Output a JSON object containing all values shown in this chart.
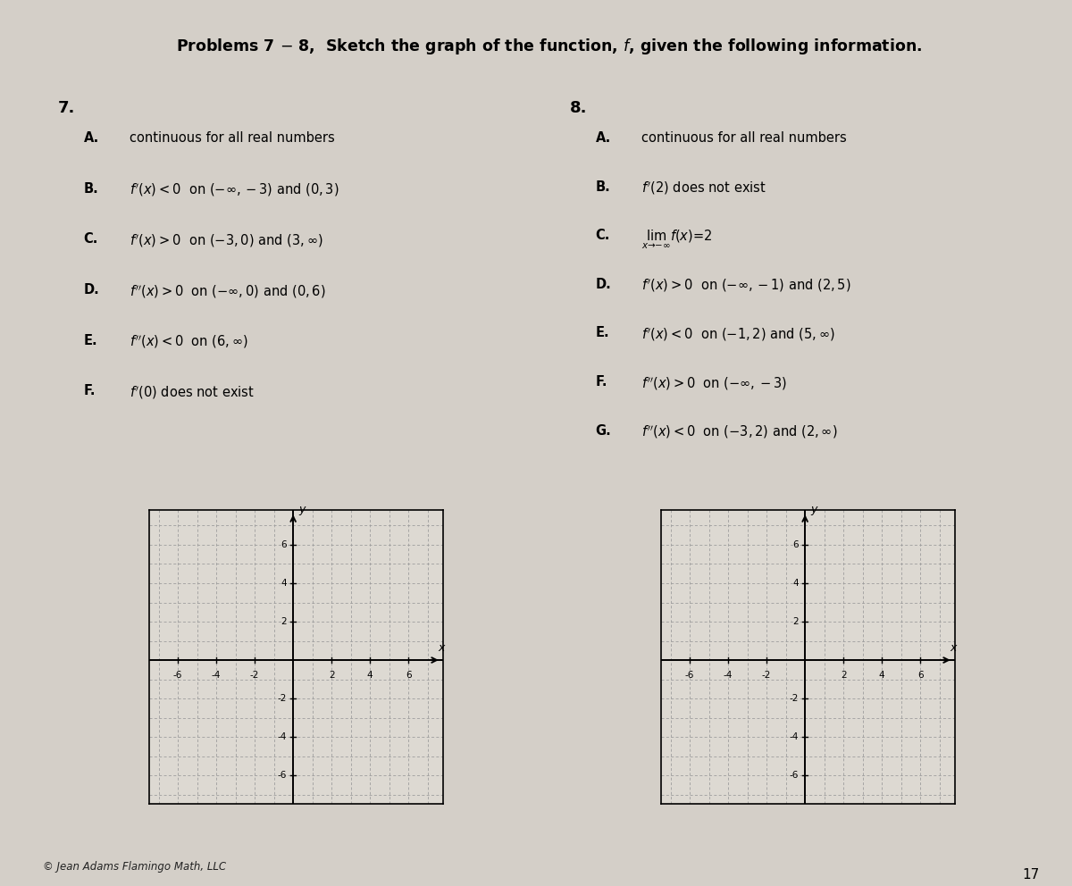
{
  "title": "Problems 7 – 8,  Sketch the graph of the function, $f$, given the following information.",
  "bg_color": "#d4cfc8",
  "panel_bg": "#e8e4de",
  "grid_bg": "#ddd9d2",
  "title_bg": "#ffffff",
  "grid_line_color": "#999999",
  "tick_values": [
    -6,
    -4,
    -2,
    2,
    4,
    6
  ],
  "copyright": "© Jean Adams Flamingo Math, LLC",
  "page_number": "17",
  "problem7_label": "7.",
  "problem8_label": "8.",
  "problem7_items": [
    [
      "A.",
      "continuous for all real numbers"
    ],
    [
      "B.",
      "$f'(x) < 0$  on $(-\\infty, -3)$ and $(0, 3)$"
    ],
    [
      "C.",
      "$f'(x) > 0$  on $(-3, 0)$ and $(3, \\infty)$"
    ],
    [
      "D.",
      "$f''(x) > 0$  on $(-\\infty, 0)$ and $(0,6)$"
    ],
    [
      "E.",
      "$f''(x) < 0$  on $(6, \\infty)$"
    ],
    [
      "F.",
      "$f'(0)$ does not exist"
    ]
  ],
  "problem8_items": [
    [
      "A.",
      "continuous for all real numbers"
    ],
    [
      "B.",
      "$f'(2)$ does not exist"
    ],
    [
      "C.",
      "$\\lim_{x\\to-\\infty} f(x) = 2$"
    ],
    [
      "D.",
      "$f'(x) > 0$  on $(-\\infty, -1)$ and $(2,5)$"
    ],
    [
      "E.",
      "$f'(x) < 0$  on $(-1, 2)$ and $(5, \\infty)$"
    ],
    [
      "F.",
      "$f''(x) > 0$  on $(-\\infty, -3)$"
    ],
    [
      "G.",
      "$f''(x) < 0$  on $(-3, 2)$ and $(2, \\infty)$"
    ]
  ]
}
